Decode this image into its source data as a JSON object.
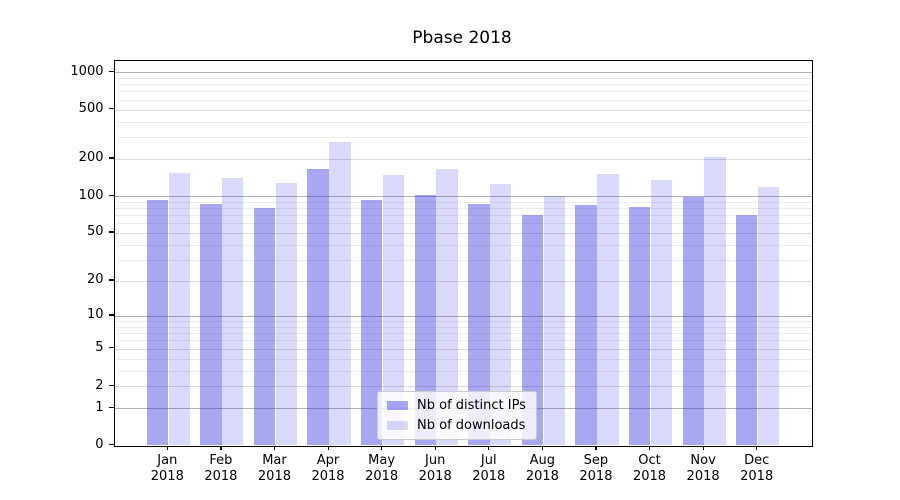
{
  "chart_data": {
    "type": "bar",
    "title": "Pbase 2018",
    "x_tick_year": "2018",
    "categories": [
      "Jan",
      "Feb",
      "Mar",
      "Apr",
      "May",
      "Jun",
      "Jul",
      "Aug",
      "Sep",
      "Oct",
      "Nov",
      "Dec"
    ],
    "series": [
      {
        "name": "Nb of distinct IPs",
        "color": "rgba(55,55,225,0.44)",
        "values": [
          93,
          86,
          80,
          165,
          93,
          102,
          86,
          70,
          84,
          82,
          98,
          70
        ]
      },
      {
        "name": "Nb of downloads",
        "color": "rgba(55,55,225,0.19)",
        "values": [
          155,
          140,
          127,
          272,
          148,
          166,
          126,
          100,
          151,
          136,
          208,
          118
        ]
      }
    ],
    "yscale": "log1p",
    "ylim": [
      0,
      1228
    ],
    "yticks": [
      0,
      1,
      2,
      5,
      10,
      20,
      50,
      100,
      200,
      500,
      1000
    ],
    "grid": {
      "major_ticks": [
        1,
        10,
        100,
        1000
      ],
      "mid_ticks": [
        2,
        5,
        20,
        50,
        200,
        500
      ],
      "minor_ticks": [
        3,
        4,
        6,
        7,
        8,
        9,
        30,
        40,
        60,
        70,
        80,
        90,
        300,
        400,
        600,
        700,
        800,
        900
      ],
      "major_color": "#b0b0b0",
      "mid_color": "#dbdbdb",
      "minor_color": "#ececec"
    },
    "legend": {
      "position": "lower center"
    }
  }
}
